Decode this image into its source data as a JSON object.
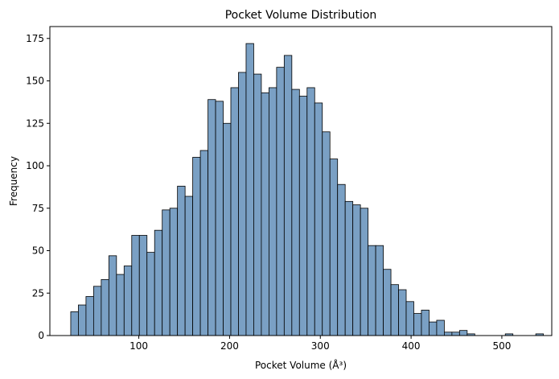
{
  "chart_data": {
    "type": "bar",
    "title": "Pocket Volume Distribution",
    "xlabel": "Pocket Volume (Å³)",
    "ylabel": "Frequency",
    "xlim": [
      2,
      555
    ],
    "ylim": [
      0,
      182
    ],
    "xticks": [
      100,
      200,
      300,
      400,
      500
    ],
    "yticks": [
      0,
      25,
      50,
      75,
      100,
      125,
      150,
      175
    ],
    "grid": false,
    "bar_color": "#7aa0c4",
    "edge_color": "#000000",
    "bin_start": 25,
    "bin_width": 8.4,
    "counts": [
      14,
      18,
      23,
      29,
      33,
      47,
      36,
      41,
      59,
      59,
      49,
      62,
      74,
      75,
      88,
      82,
      105,
      109,
      139,
      138,
      125,
      146,
      155,
      172,
      154,
      143,
      146,
      158,
      165,
      145,
      141,
      146,
      137,
      120,
      104,
      89,
      79,
      77,
      75,
      53,
      53,
      39,
      30,
      27,
      20,
      13,
      15,
      8,
      9,
      2,
      2,
      3,
      1,
      0,
      0,
      0,
      0,
      1,
      0,
      0,
      0,
      1
    ]
  }
}
